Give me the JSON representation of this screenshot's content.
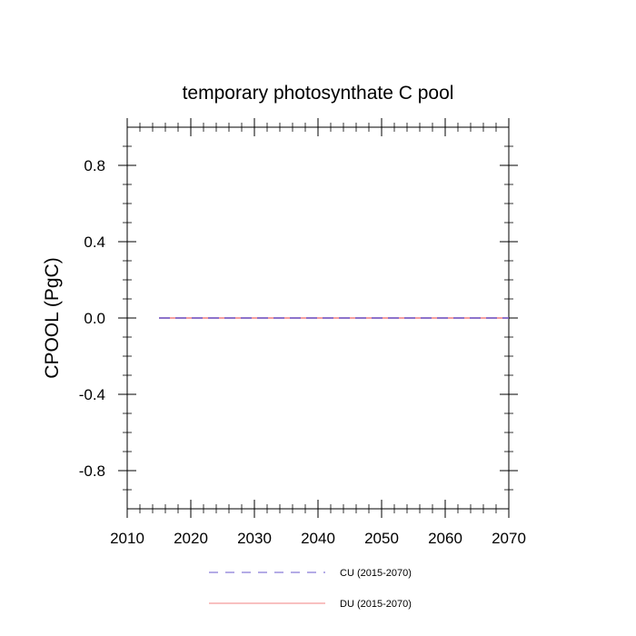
{
  "chart_data": {
    "type": "line",
    "title": "temporary photosynthate C pool",
    "xlabel": "",
    "ylabel": "CPOOL  (PgC)",
    "xlim": [
      2010,
      2070
    ],
    "ylim": [
      -1.0,
      1.0
    ],
    "x_ticks": [
      2010,
      2020,
      2030,
      2040,
      2050,
      2060,
      2070
    ],
    "x_tick_labels": [
      "2010",
      "2020",
      "2030",
      "2040",
      "2050",
      "2060",
      "2070"
    ],
    "y_ticks": [
      0.8,
      0.4,
      0.0,
      -0.4,
      -0.8
    ],
    "y_tick_labels": [
      "0.8",
      "0.4",
      "0.0",
      "-0.4",
      "-0.8"
    ],
    "grid": false,
    "legend_position": "bottom-center",
    "series": [
      {
        "name": "CU (2015-2070)",
        "color": "#6a5acd",
        "dash": "dashed",
        "x": [
          2015,
          2070
        ],
        "y": [
          0.0,
          0.0
        ]
      },
      {
        "name": "DU (2015-2070)",
        "color": "#f08080",
        "dash": "solid",
        "x": [
          2015,
          2070
        ],
        "y": [
          0.0,
          0.0
        ]
      }
    ]
  }
}
